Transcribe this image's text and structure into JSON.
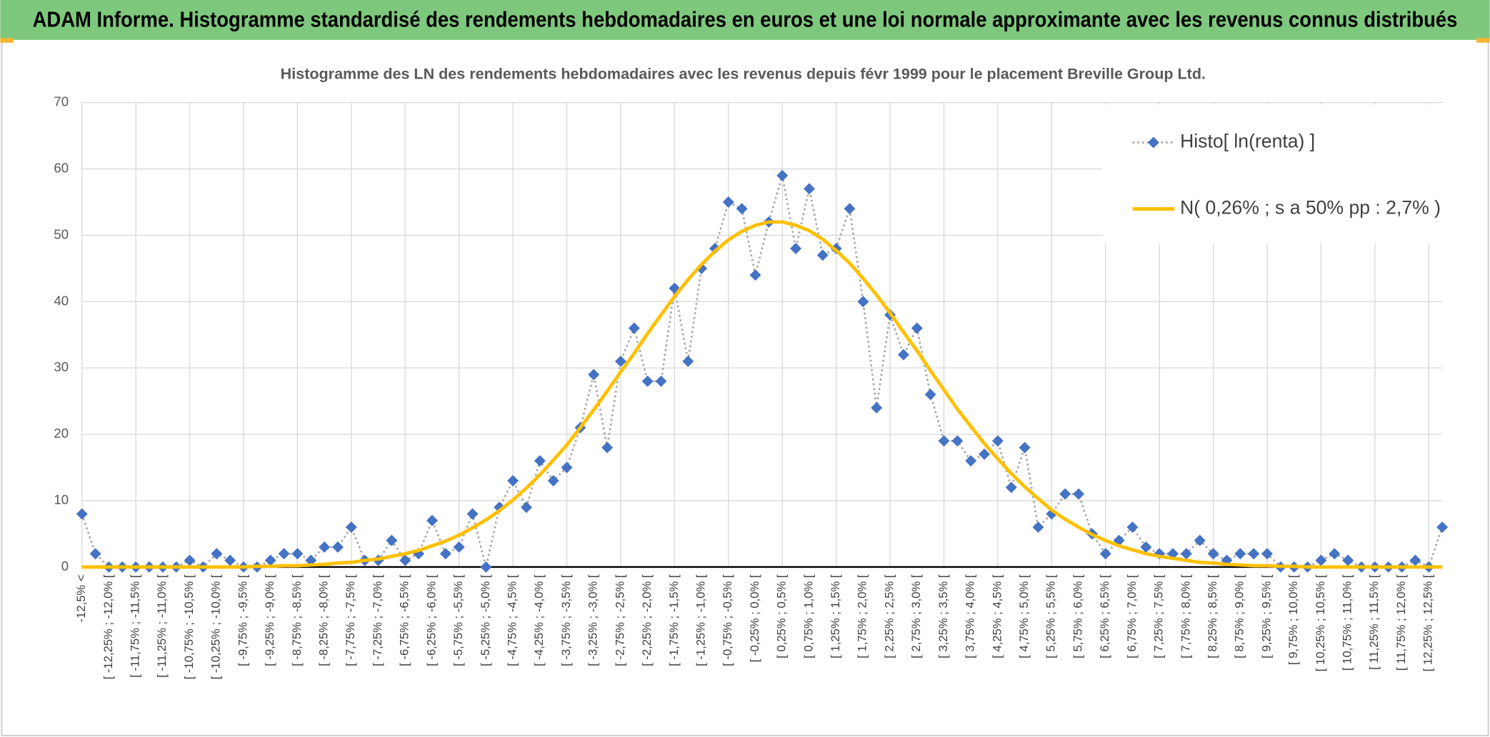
{
  "header": {
    "title": "ADAM Informe. Histogramme standardisé des rendements hebdomadaires en euros et une loi normale approximante avec les revenus connus distribués"
  },
  "chart_data": {
    "type": "line",
    "title": "Histogramme des LN des rendements hebdomadaires avec les revenus depuis févr 1999 pour le placement Breville Group Ltd.",
    "categories": [
      "-12,5% <",
      null,
      "[ -12,25% ; -12,0% [",
      null,
      "[ -11,75% ; -11,5% [",
      null,
      "[ -11,25% ; -11,0% [",
      null,
      "[ -10,75% ; -10,5% [",
      null,
      "[ -10,25% ; -10,0% [",
      null,
      "[ -9,75% ; -9,5% [",
      null,
      "[ -9,25% ; -9,0% [",
      null,
      "[ -8,75% ; -8,5% [",
      null,
      "[ -8,25% ; -8,0% [",
      null,
      "[ -7,75% ; -7,5% [",
      null,
      "[ -7,25% ; -7,0% [",
      null,
      "[ -6,75% ; -6,5% [",
      null,
      "[ -6,25% ; -6,0% [",
      null,
      "[ -5,75% ; -5,5% [",
      null,
      "[ -5,25% ; -5,0% [",
      null,
      "[ -4,75% ; -4,5% [",
      null,
      "[ -4,25% ; -4,0% [",
      null,
      "[ -3,75% ; -3,5% [",
      null,
      "[ -3,25% ; -3,0% [",
      null,
      "[ -2,75% ; -2,5% [",
      null,
      "[ -2,25% ; -2,0% [",
      null,
      "[ -1,75% ; -1,5% [",
      null,
      "[ -1,25% ; -1,0% [",
      null,
      "[ -0,75% ; -0,5% [",
      null,
      "[ -0,25% ; 0,0% [",
      null,
      "[ 0,25% ; 0,5% [",
      null,
      "[ 0,75% ; 1,0% [",
      null,
      "[ 1,25% ; 1,5% [",
      null,
      "[ 1,75% ; 2,0% [",
      null,
      "[ 2,25% ; 2,5% [",
      null,
      "[ 2,75% ; 3,0% [",
      null,
      "[ 3,25% ; 3,5% [",
      null,
      "[ 3,75% ; 4,0% [",
      null,
      "[ 4,25% ; 4,5% [",
      null,
      "[ 4,75% ; 5,0% [",
      null,
      "[ 5,25% ; 5,5% [",
      null,
      "[ 5,75% ; 6,0% [",
      null,
      "[ 6,25% ; 6,5% [",
      null,
      "[ 6,75% ; 7,0% [",
      null,
      "[ 7,25% ; 7,5% [",
      null,
      "[ 7,75% ; 8,0% [",
      null,
      "[ 8,25% ; 8,5% [",
      null,
      "[ 8,75% ; 9,0% [",
      null,
      "[ 9,25% ; 9,5% [",
      null,
      "[ 9,75% ; 10,0% [",
      null,
      "[ 10,25% ; 10,5% [",
      null,
      "[ 10,75% ; 11,0% [",
      null,
      "[ 11,25% ; 11,5% [",
      null,
      "[ 11,75% ; 12,0% [",
      null,
      "[ 12,25% ; 12,5% [",
      null
    ],
    "series": [
      {
        "name": "Histo[ ln(renta) ]",
        "color": "#4472c4",
        "line_color": "#a5a5a5",
        "values": [
          8,
          2,
          0,
          0,
          0,
          0,
          0,
          0,
          1,
          0,
          2,
          1,
          0,
          0,
          1,
          2,
          2,
          1,
          3,
          3,
          6,
          1,
          1,
          4,
          1,
          2,
          7,
          2,
          3,
          8,
          0,
          9,
          13,
          9,
          16,
          13,
          15,
          21,
          29,
          18,
          31,
          36,
          28,
          28,
          42,
          31,
          45,
          48,
          55,
          54,
          44,
          52,
          59,
          48,
          57,
          47,
          48,
          54,
          40,
          24,
          38,
          32,
          36,
          26,
          19,
          19,
          16,
          17,
          19,
          12,
          18,
          6,
          8,
          11,
          11,
          5,
          2,
          4,
          6,
          3,
          2,
          2,
          2,
          4,
          2,
          1,
          2,
          2,
          2,
          0,
          0,
          0,
          1,
          2,
          1,
          0,
          0,
          0,
          0,
          1,
          0,
          6
        ]
      },
      {
        "name": "N( 0,26% ; s a 50% pp : 2,7% )",
        "color": "#ffc000",
        "values": [
          0,
          0,
          0,
          0,
          0,
          0,
          0,
          0,
          0,
          0,
          0,
          0,
          0,
          0.1,
          0.1,
          0.2,
          0.2,
          0.3,
          0.4,
          0.6,
          0.7,
          1.0,
          1.2,
          1.6,
          2.0,
          2.5,
          3.2,
          3.9,
          4.8,
          5.9,
          7.1,
          8.5,
          10.1,
          11.9,
          13.9,
          16.1,
          18.4,
          21.0,
          23.7,
          26.5,
          29.4,
          32.2,
          35.2,
          38.0,
          40.8,
          43.3,
          45.6,
          47.6,
          49.3,
          50.6,
          51.5,
          52.0,
          52.0,
          51.5,
          50.7,
          49.4,
          47.7,
          45.8,
          43.5,
          41.0,
          38.3,
          35.4,
          32.6,
          29.6,
          26.7,
          23.8,
          21.2,
          18.6,
          16.3,
          14.1,
          12.1,
          10.3,
          8.6,
          7.2,
          6.0,
          4.9,
          4.0,
          3.2,
          2.6,
          2.0,
          1.6,
          1.3,
          1.0,
          0.7,
          0.6,
          0.4,
          0.3,
          0.2,
          0.2,
          0.1,
          0.1,
          0,
          0,
          0,
          0,
          0,
          0,
          0,
          0,
          0,
          0,
          0
        ]
      }
    ],
    "ylim": [
      0,
      70
    ],
    "yticks": [
      0,
      10,
      20,
      30,
      40,
      50,
      60,
      70
    ],
    "grid": true,
    "legend": "top-right"
  }
}
